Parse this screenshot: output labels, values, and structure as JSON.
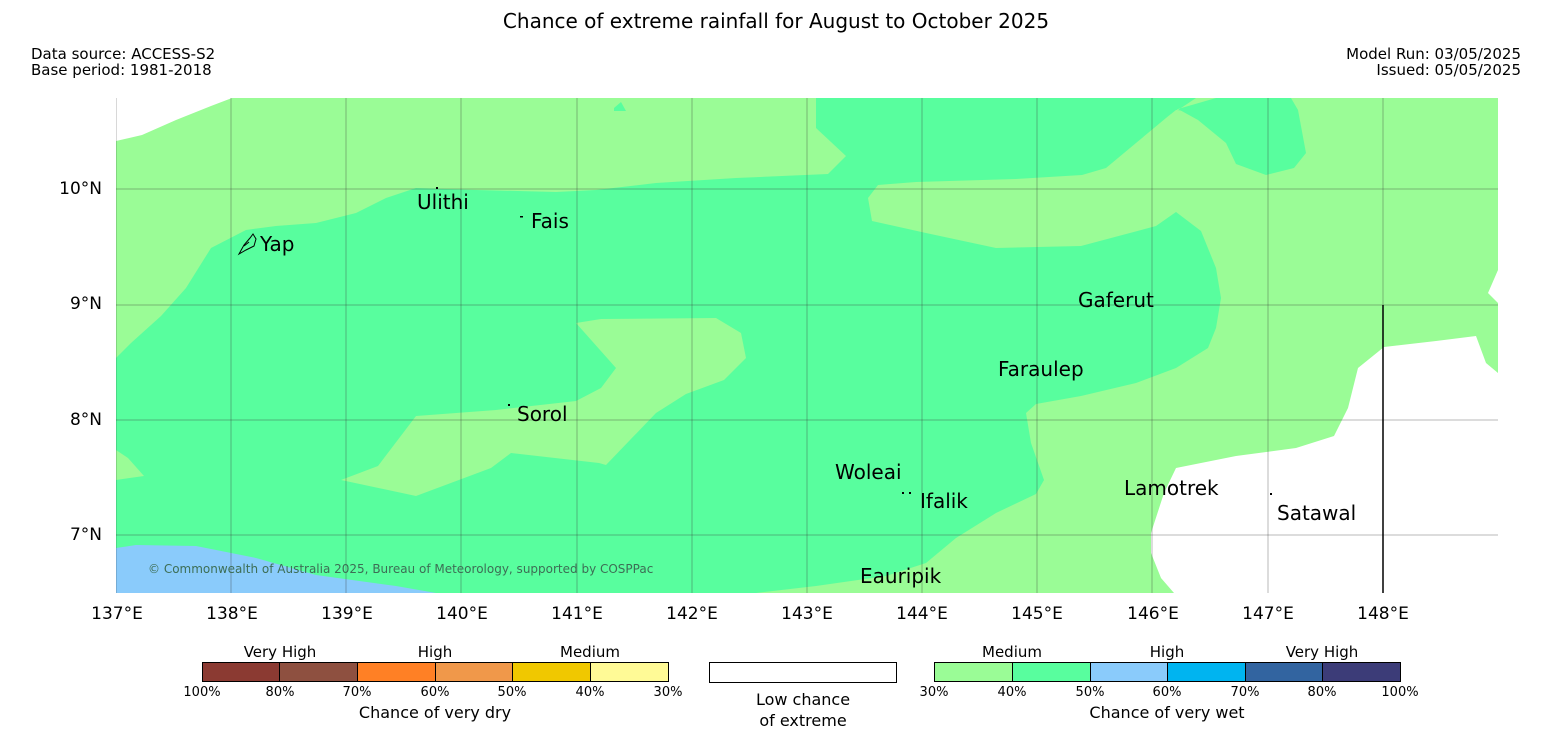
{
  "title": "Chance of extreme rainfall for August to October 2025",
  "data_source": "Data source: ACCESS-S2",
  "base_period": "Base period: 1981-2018",
  "model_run": "Model Run: 03/05/2025",
  "issued": "Issued: 05/05/2025",
  "map": {
    "lat_labels": [
      "10°N",
      "9°N",
      "8°N",
      "7°N"
    ],
    "lon_labels": [
      "137°E",
      "138°E",
      "139°E",
      "140°E",
      "141°E",
      "142°E",
      "143°E",
      "144°E",
      "145°E",
      "146°E",
      "147°E",
      "148°E"
    ],
    "places": [
      "Ulithi",
      "Fais",
      "Yap",
      "Gaferut",
      "Faraulep",
      "Sorol",
      "Woleai",
      "Ifalik",
      "Lamotrek",
      "Satawal",
      "Eauripik"
    ],
    "copyright": "© Commonwealth of Australia 2025, Bureau of Meteorology, supported by COSPPac",
    "colors": {
      "medium_wet_30_40": "#9afc96",
      "medium_wet_40_50": "#58fe9e",
      "high_wet_50_60": "#8acbfb",
      "low_chance": "#ffffff"
    }
  },
  "legend": {
    "dry": {
      "categories": [
        "Very High",
        "High",
        "Medium"
      ],
      "ticks": [
        "100%",
        "80%",
        "70%",
        "60%",
        "50%",
        "40%",
        "30%"
      ],
      "colors": [
        "#8b3a32",
        "#8e5040",
        "#ff8025",
        "#f0984a",
        "#f0c800",
        "#fffa96"
      ],
      "title": "Chance of very dry"
    },
    "low": {
      "label_line1": "Low chance",
      "label_line2": "of extreme"
    },
    "wet": {
      "categories": [
        "Medium",
        "High",
        "Very High"
      ],
      "ticks": [
        "30%",
        "40%",
        "50%",
        "60%",
        "70%",
        "80%",
        "100%"
      ],
      "colors": [
        "#9afc96",
        "#58fe9e",
        "#8acbfb",
        "#00b4f0",
        "#3264a0",
        "#3c3c78"
      ],
      "title": "Chance of very wet"
    }
  }
}
